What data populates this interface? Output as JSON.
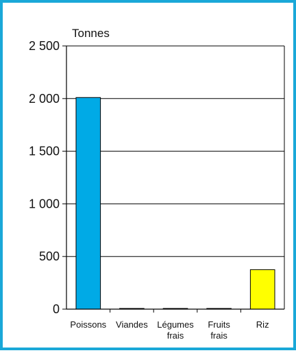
{
  "chart_data": {
    "type": "bar",
    "ylabel": "Tonnes",
    "categories": [
      [
        "Poissons"
      ],
      [
        "Viandes"
      ],
      [
        "Légumes",
        "frais"
      ],
      [
        "Fruits",
        "frais"
      ],
      [
        "Riz"
      ]
    ],
    "values": [
      2010,
      3,
      2,
      3,
      375
    ],
    "colors": [
      "#00aae6",
      "#00aae6",
      "#00aae6",
      "#00aae6",
      "#ffff00"
    ],
    "ylim": [
      0,
      2500
    ],
    "yticks": [
      0,
      500,
      1000,
      1500,
      2000,
      2500
    ],
    "ytick_labels": [
      "0",
      "500",
      "1 000",
      "1 500",
      "2 000",
      "2 500"
    ],
    "grid": true,
    "frame_color": "#1aa8d8"
  }
}
